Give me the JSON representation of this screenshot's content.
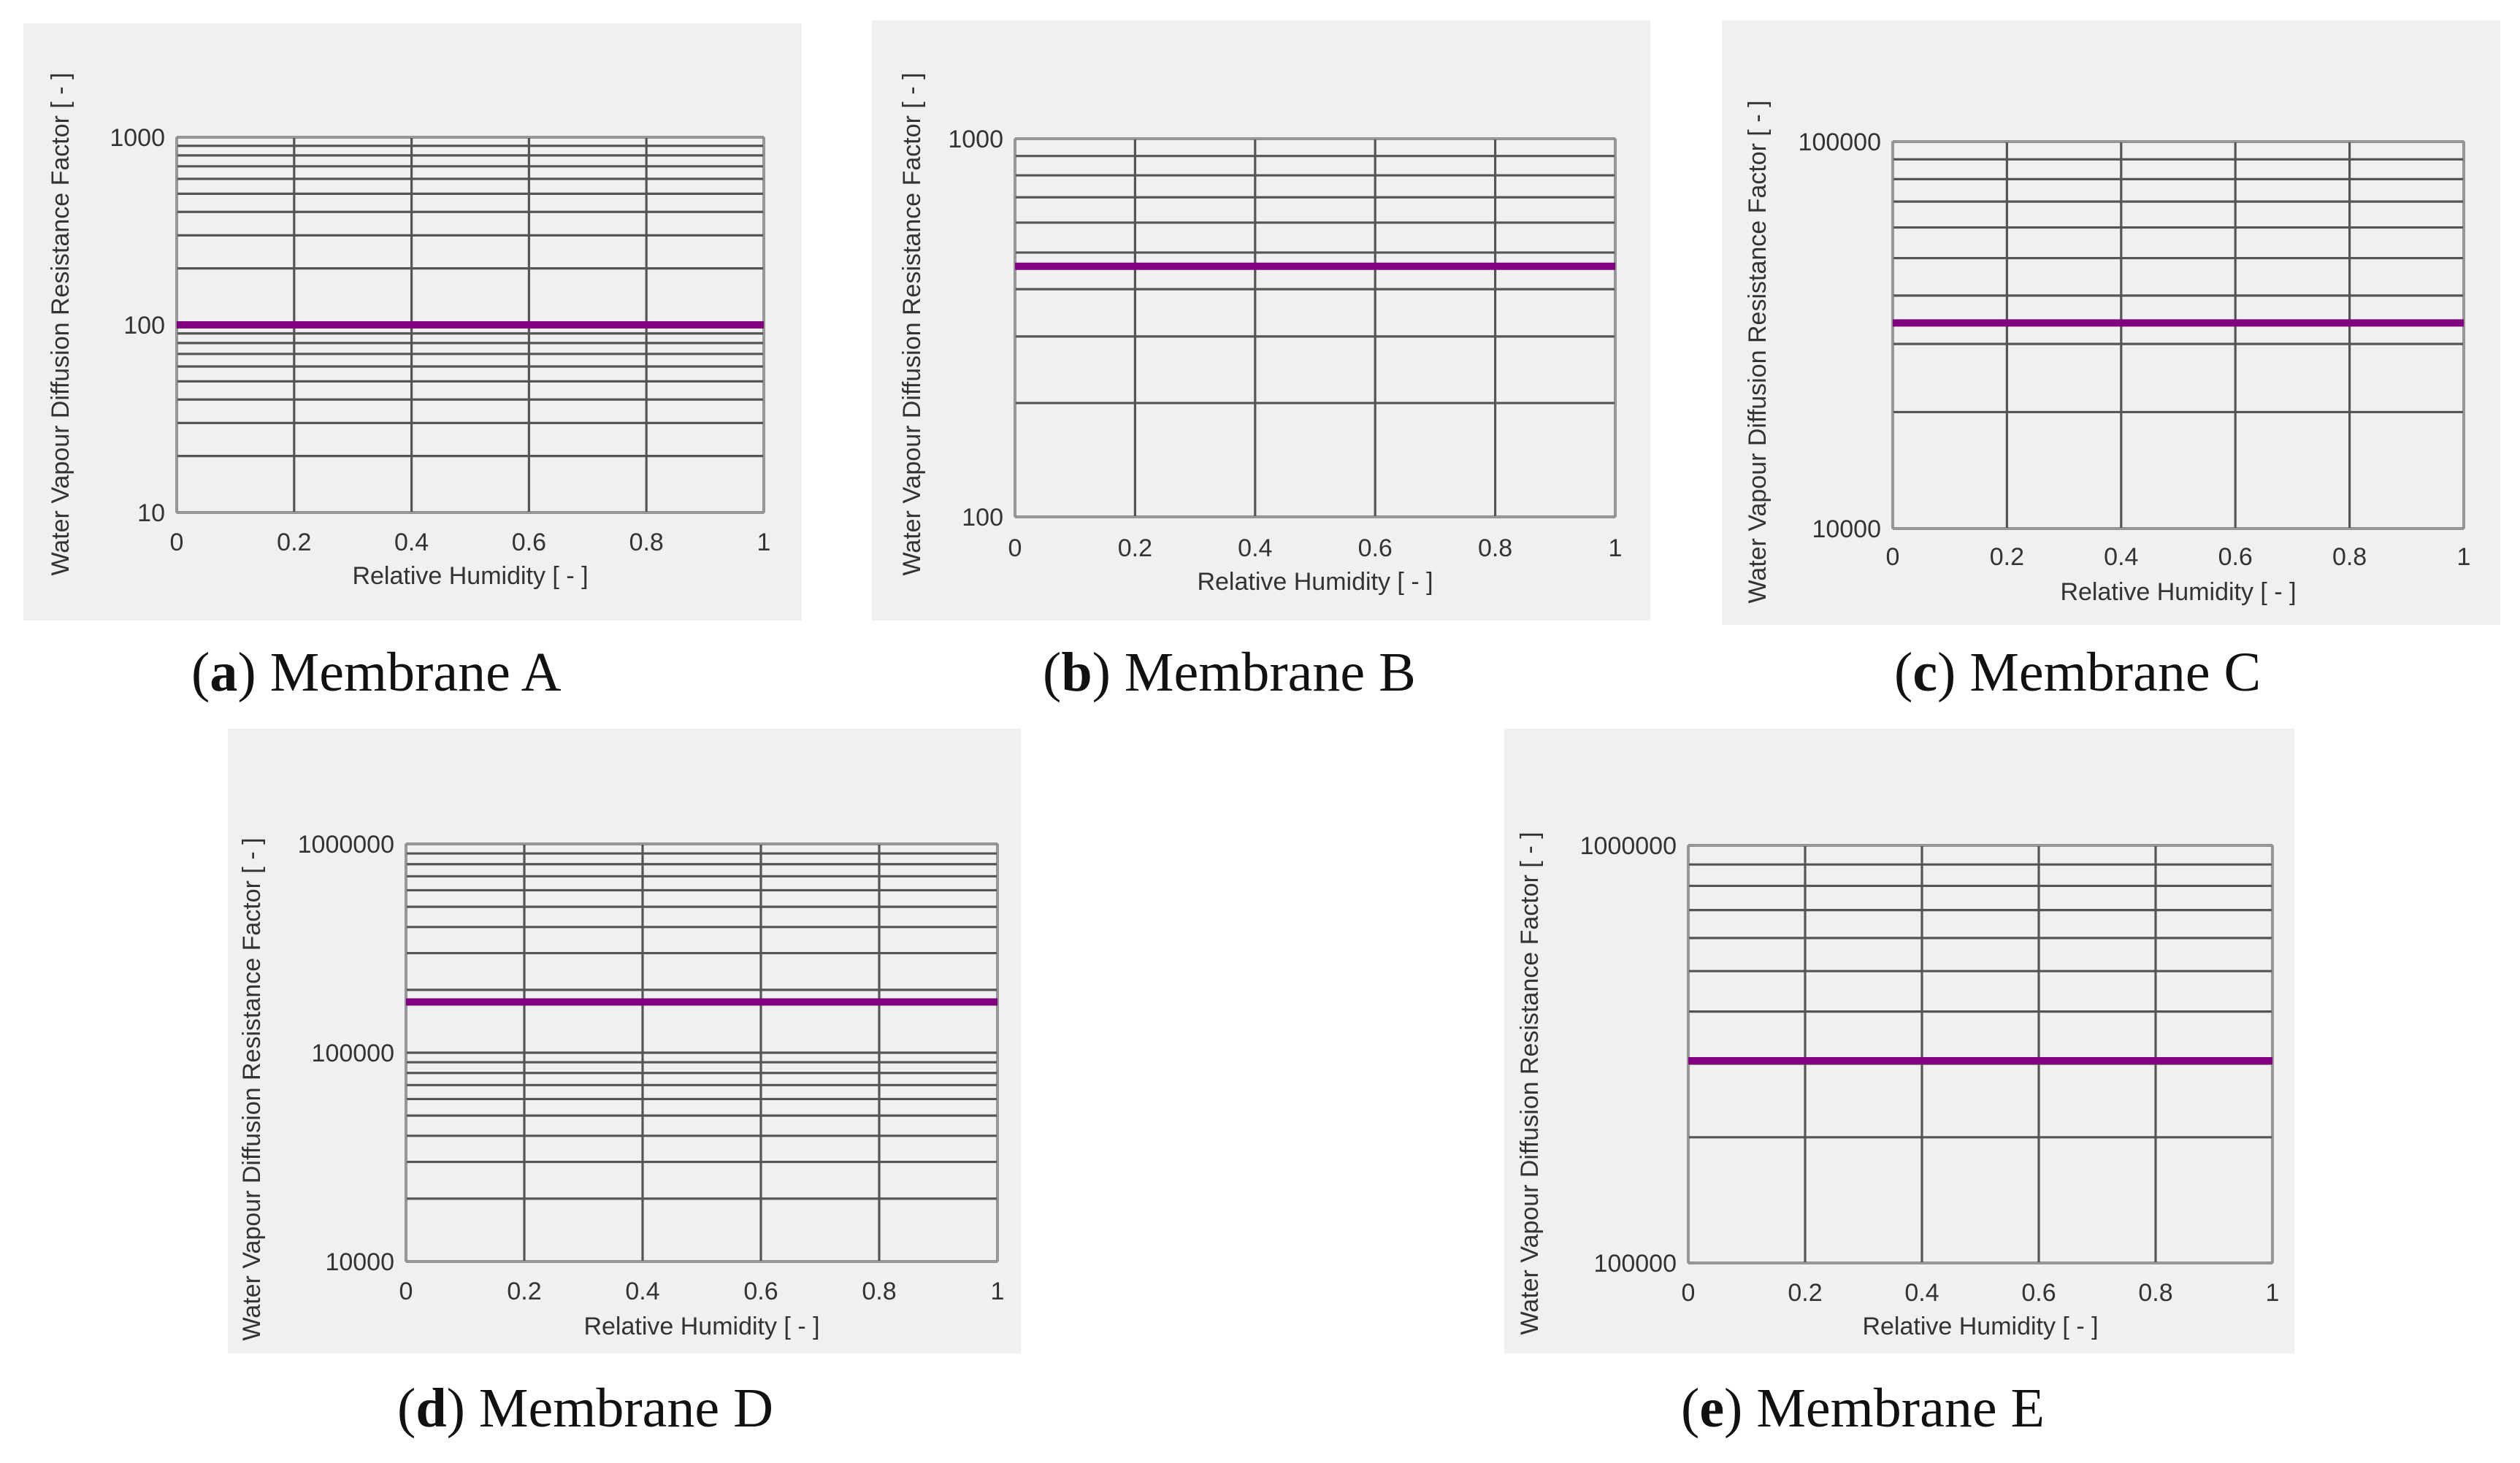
{
  "chart_data": [
    {
      "id": "a",
      "type": "line",
      "caption_letter": "a",
      "caption_text": "Membrane A",
      "xlabel": "Relative Humidity [ - ]",
      "ylabel": "Water Vapour Diffusion Resistance Factor [ - ]",
      "yscale": "log",
      "xlim": [
        0,
        1
      ],
      "ylim": [
        10,
        1000
      ],
      "x_ticks": [
        "0",
        "0.2",
        "0.4",
        "0.6",
        "0.8",
        "1"
      ],
      "y_ticks": [
        "10",
        "100",
        "1000"
      ],
      "series": [
        {
          "name": "Membrane A",
          "color": "#800080",
          "x": [
            0,
            1
          ],
          "y": [
            100,
            100
          ]
        }
      ]
    },
    {
      "id": "b",
      "type": "line",
      "caption_letter": "b",
      "caption_text": "Membrane B",
      "xlabel": "Relative Humidity [ - ]",
      "ylabel": "Water Vapour Diffusion Resistance Factor [ - ]",
      "yscale": "log",
      "xlim": [
        0,
        1
      ],
      "ylim": [
        100,
        1000
      ],
      "x_ticks": [
        "0",
        "0.2",
        "0.4",
        "0.6",
        "0.8",
        "1"
      ],
      "y_ticks": [
        "100",
        "1000"
      ],
      "series": [
        {
          "name": "Membrane B",
          "color": "#800080",
          "x": [
            0,
            1
          ],
          "y": [
            460,
            460
          ]
        }
      ]
    },
    {
      "id": "c",
      "type": "line",
      "caption_letter": "c",
      "caption_text": "Membrane C",
      "xlabel": "Relative Humidity [ - ]",
      "ylabel": "Water Vapour Diffusion Resistance Factor [ - ]",
      "yscale": "log",
      "xlim": [
        0,
        1
      ],
      "ylim": [
        10000,
        100000
      ],
      "x_ticks": [
        "0",
        "0.2",
        "0.4",
        "0.6",
        "0.8",
        "1"
      ],
      "y_ticks": [
        "10000",
        "100000"
      ],
      "series": [
        {
          "name": "Membrane C",
          "color": "#800080",
          "x": [
            0,
            1
          ],
          "y": [
            34000,
            34000
          ]
        }
      ]
    },
    {
      "id": "d",
      "type": "line",
      "caption_letter": "d",
      "caption_text": "Membrane D",
      "xlabel": "Relative Humidity [ - ]",
      "ylabel": "Water Vapour Diffusion Resistance Factor [ - ]",
      "yscale": "log",
      "xlim": [
        0,
        1
      ],
      "ylim": [
        10000,
        1000000
      ],
      "x_ticks": [
        "0",
        "0.2",
        "0.4",
        "0.6",
        "0.8",
        "1"
      ],
      "y_ticks": [
        "10000",
        "100000",
        "1000000"
      ],
      "series": [
        {
          "name": "Membrane D",
          "color": "#800080",
          "x": [
            0,
            1
          ],
          "y": [
            175000,
            175000
          ]
        }
      ]
    },
    {
      "id": "e",
      "type": "line",
      "caption_letter": "e",
      "caption_text": "Membrane E",
      "xlabel": "Relative Humidity [ - ]",
      "ylabel": "Water Vapour Diffusion Resistance Factor [ - ]",
      "yscale": "log",
      "xlim": [
        0,
        1
      ],
      "ylim": [
        100000,
        1000000
      ],
      "x_ticks": [
        "0",
        "0.2",
        "0.4",
        "0.6",
        "0.8",
        "1"
      ],
      "y_ticks": [
        "100000",
        "1000000"
      ],
      "series": [
        {
          "name": "Membrane E",
          "color": "#800080",
          "x": [
            0,
            1
          ],
          "y": [
            305000,
            305000
          ]
        }
      ]
    }
  ]
}
